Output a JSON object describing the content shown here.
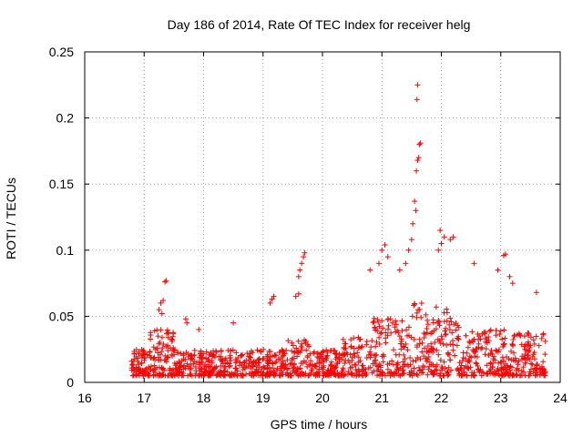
{
  "chart_data": {
    "type": "scatter",
    "title": "Day 186 of 2014, Rate Of TEC Index for receiver helg",
    "xlabel": "GPS time / hours",
    "ylabel": "ROTI / TECUs",
    "xlim": [
      16,
      24
    ],
    "ylim": [
      0,
      0.25
    ],
    "xticks": [
      "16",
      "17",
      "18",
      "19",
      "20",
      "21",
      "22",
      "23",
      "24"
    ],
    "yticks": [
      "0",
      "0.05",
      "0.1",
      "0.15",
      "0.2",
      "0.25"
    ],
    "xtick_values": [
      16,
      17,
      18,
      19,
      20,
      21,
      22,
      23,
      24
    ],
    "ytick_values": [
      0,
      0.05,
      0.1,
      0.15,
      0.2,
      0.25
    ],
    "grid": true,
    "marker": "+",
    "color": "#ff0000",
    "series": [
      {
        "name": "ROTI",
        "points": [
          [
            17.25,
            0.055
          ],
          [
            17.28,
            0.06
          ],
          [
            17.3,
            0.052
          ],
          [
            17.32,
            0.062
          ],
          [
            17.35,
            0.076
          ],
          [
            17.37,
            0.077
          ],
          [
            17.7,
            0.048
          ],
          [
            17.72,
            0.045
          ],
          [
            17.92,
            0.04
          ],
          [
            18.5,
            0.045
          ],
          [
            19.12,
            0.06
          ],
          [
            19.15,
            0.063
          ],
          [
            19.18,
            0.065
          ],
          [
            19.55,
            0.065
          ],
          [
            19.6,
            0.08
          ],
          [
            19.62,
            0.085
          ],
          [
            19.65,
            0.09
          ],
          [
            19.68,
            0.095
          ],
          [
            19.7,
            0.098
          ],
          [
            19.6,
            0.067
          ],
          [
            20.8,
            0.085
          ],
          [
            20.95,
            0.09
          ],
          [
            21.0,
            0.1
          ],
          [
            21.05,
            0.104
          ],
          [
            21.1,
            0.095
          ],
          [
            21.3,
            0.085
          ],
          [
            21.4,
            0.09
          ],
          [
            21.45,
            0.1
          ],
          [
            21.5,
            0.108
          ],
          [
            21.52,
            0.12
          ],
          [
            21.55,
            0.137
          ],
          [
            21.57,
            0.13
          ],
          [
            21.58,
            0.16
          ],
          [
            21.6,
            0.168
          ],
          [
            21.62,
            0.17
          ],
          [
            21.63,
            0.18
          ],
          [
            21.65,
            0.181
          ],
          [
            21.59,
            0.214
          ],
          [
            21.6,
            0.225
          ],
          [
            21.95,
            0.1
          ],
          [
            21.98,
            0.115
          ],
          [
            22.0,
            0.105
          ],
          [
            22.05,
            0.11
          ],
          [
            22.15,
            0.108
          ],
          [
            22.2,
            0.11
          ],
          [
            22.55,
            0.09
          ],
          [
            22.95,
            0.085
          ],
          [
            23.05,
            0.096
          ],
          [
            23.08,
            0.097
          ],
          [
            23.15,
            0.08
          ],
          [
            23.2,
            0.075
          ],
          [
            23.6,
            0.068
          ]
        ]
      }
    ]
  }
}
